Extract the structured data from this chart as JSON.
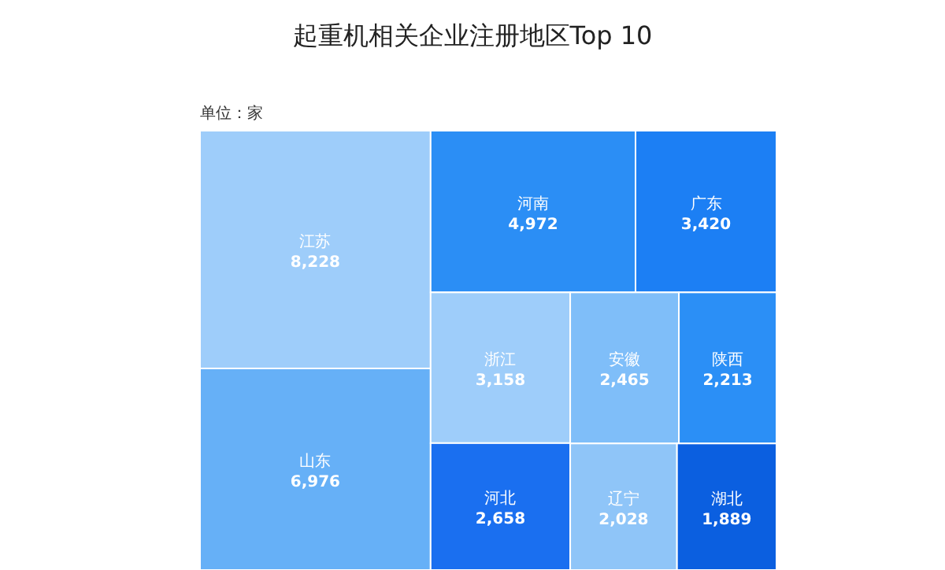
{
  "chart_data": {
    "type": "other",
    "title": "起重机相关企业注册地区Top 10",
    "annotations": [
      "单位：家"
    ],
    "categories": [
      "江苏",
      "山东",
      "河南",
      "广东",
      "浙江",
      "河北",
      "安徽",
      "陕西",
      "辽宁",
      "湖北"
    ],
    "values": [
      8228,
      6976,
      4972,
      3420,
      3158,
      2658,
      2465,
      2213,
      2028,
      1889
    ],
    "value_labels": [
      "8,228",
      "6,976",
      "4,972",
      "3,420",
      "3,158",
      "2,658",
      "2,465",
      "2,213",
      "2,028",
      "1,889"
    ],
    "colors": [
      "#9ecdfa",
      "#66b0f7",
      "#2b8ef5",
      "#1c7ff4",
      "#9ecdfa",
      "#1a6ff0",
      "#7fbef9",
      "#2b8ff6",
      "#8fc5f8",
      "#0b5fe0"
    ]
  }
}
